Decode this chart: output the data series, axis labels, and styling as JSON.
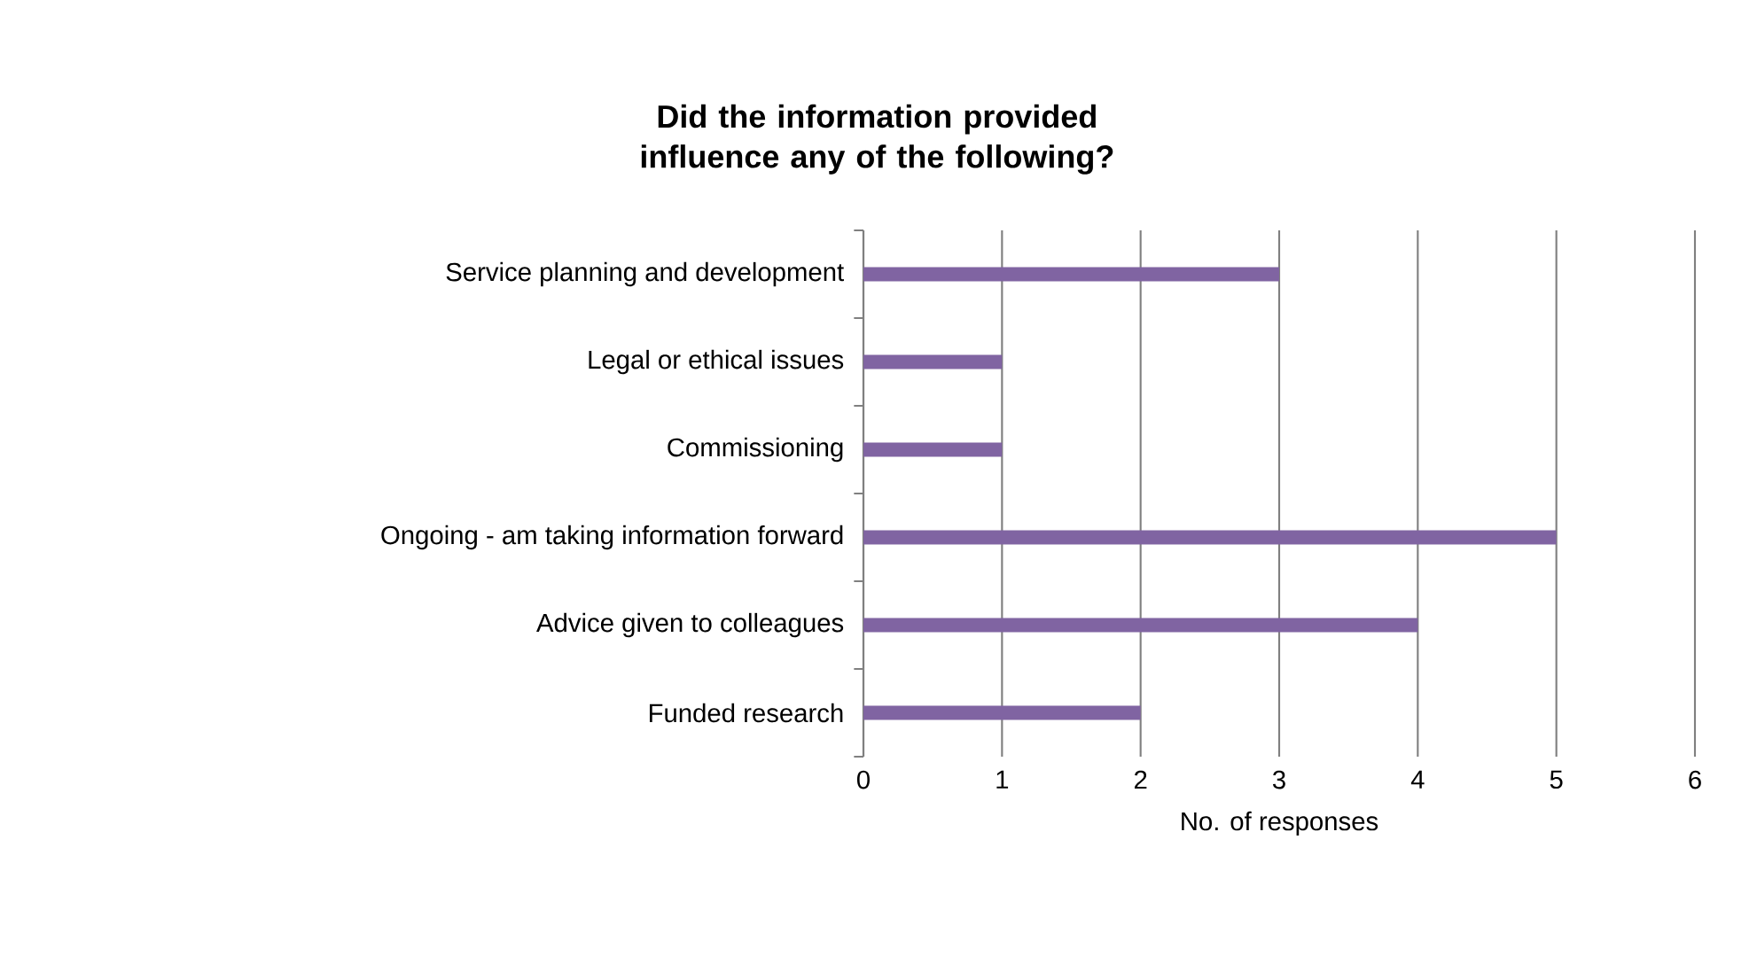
{
  "chart_data": {
    "type": "bar",
    "orientation": "horizontal",
    "title": "Did the information provided influence any of the following?",
    "xlabel": "No. of responses",
    "categories": [
      "Service planning and development",
      "Legal or ethical issues",
      "Commissioning",
      "Ongoing - am taking information forward",
      "Advice given to colleagues",
      "Funded research"
    ],
    "values": [
      3,
      1,
      1,
      5,
      4,
      2
    ],
    "color": "#8064a2",
    "xlim": [
      0,
      6
    ],
    "xticks": [
      0,
      1,
      2,
      3,
      4,
      5,
      6
    ],
    "grid": "x"
  }
}
